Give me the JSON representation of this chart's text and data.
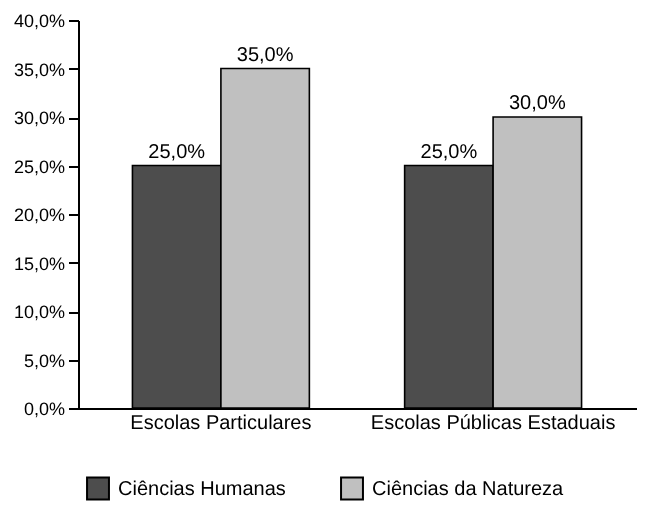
{
  "chart_data": {
    "type": "bar",
    "categories": [
      "Escolas Particulares",
      "Escolas Públicas Estaduais"
    ],
    "series": [
      {
        "name": "Ciências Humanas",
        "color": "#4d4d4d",
        "values": [
          25,
          25
        ],
        "value_labels": [
          "25,0%",
          "25,0%"
        ]
      },
      {
        "name": "Ciências da Natureza",
        "color": "#c0c0c0",
        "values": [
          35,
          30
        ],
        "value_labels": [
          "35,0%",
          "30,0%"
        ]
      }
    ],
    "ylim": [
      0,
      40
    ],
    "yticks": [
      {
        "value": 0,
        "label": "0,0%"
      },
      {
        "value": 5,
        "label": "5,0%"
      },
      {
        "value": 10,
        "label": "10,0%"
      },
      {
        "value": 15,
        "label": "15,0%"
      },
      {
        "value": 20,
        "label": "20,0%"
      },
      {
        "value": 25,
        "label": "25,0%"
      },
      {
        "value": 30,
        "label": "30,0%"
      },
      {
        "value": 35,
        "label": "35,0%"
      },
      {
        "value": 40,
        "label": "40,0%"
      }
    ],
    "grid": false,
    "legend": "bottom"
  }
}
